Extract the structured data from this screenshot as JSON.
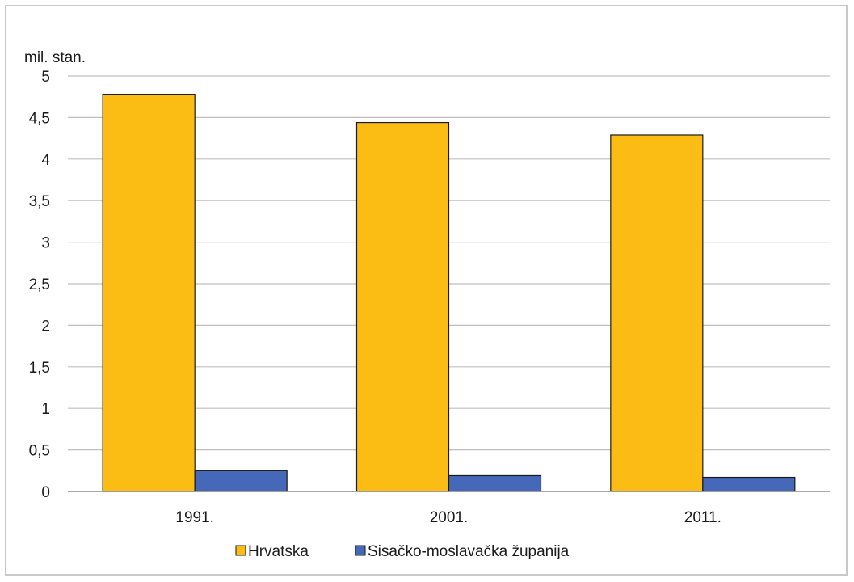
{
  "chart_data": {
    "type": "bar",
    "title": "",
    "xlabel": "",
    "ylabel": "mil. stan.",
    "ylim": [
      0,
      5
    ],
    "yticks": [
      "0",
      "0,5",
      "1",
      "1,5",
      "2",
      "2,5",
      "3",
      "3,5",
      "4",
      "4,5",
      "5"
    ],
    "categories": [
      "1991.",
      "2001.",
      "2011."
    ],
    "series": [
      {
        "name": "Hrvatska",
        "values": [
          4.78,
          4.44,
          4.29
        ],
        "color": "#fbbc14"
      },
      {
        "name": "Sisačko-moslavačka županija",
        "values": [
          0.25,
          0.19,
          0.17
        ],
        "color": "#4668b8"
      }
    ],
    "grid": true,
    "legend": "bottom"
  }
}
